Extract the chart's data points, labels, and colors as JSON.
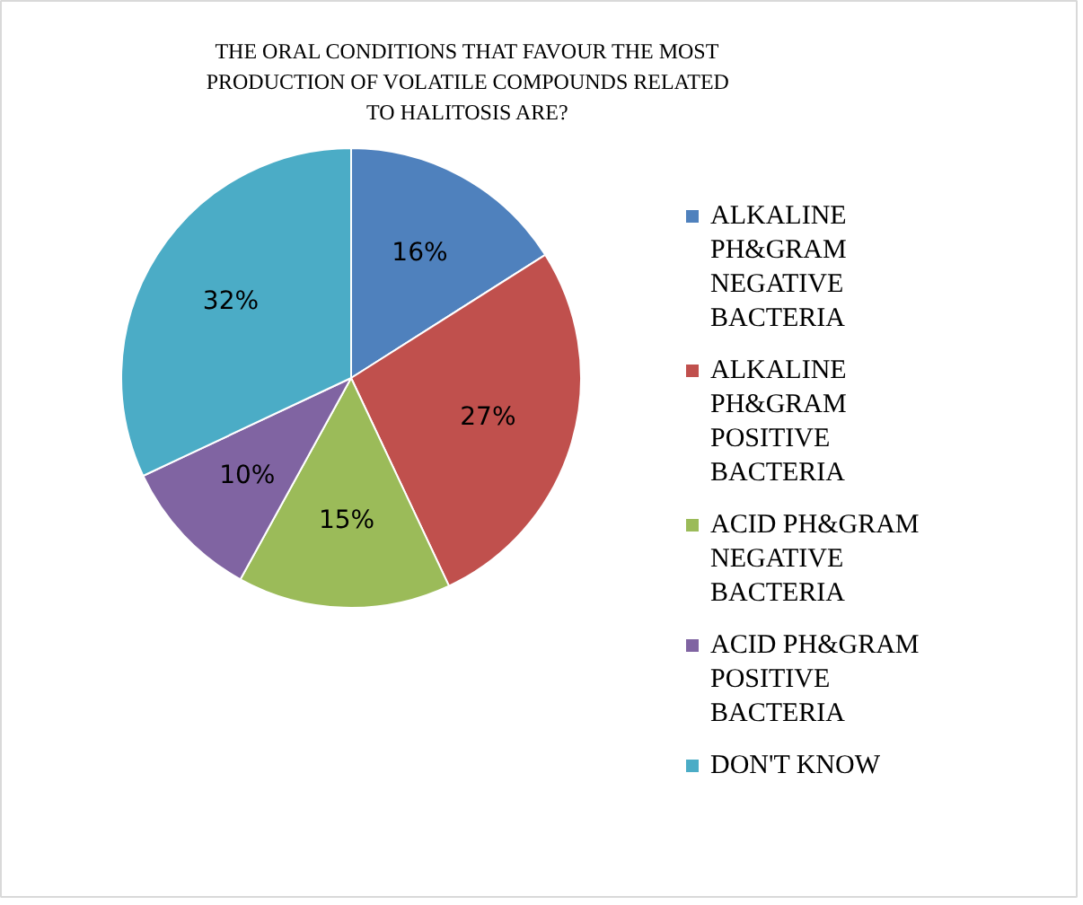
{
  "chart_data": {
    "type": "pie",
    "title": "THE ORAL CONDITIONS THAT FAVOUR THE MOST PRODUCTION OF VOLATILE COMPOUNDS RELATED TO HALITOSIS ARE?",
    "categories": [
      "ALKALINE PH&GRAM NEGATIVE BACTERIA",
      "ALKALINE PH&GRAM POSITIVE BACTERIA",
      "ACID PH&GRAM NEGATIVE BACTERIA",
      "ACID PH&GRAM POSITIVE BACTERIA",
      "DON'T KNOW"
    ],
    "values": [
      16,
      27,
      15,
      10,
      32
    ],
    "colors": [
      "#4f81bd",
      "#c0504d",
      "#9bbb59",
      "#8064a2",
      "#4bacc6"
    ],
    "value_labels": [
      "16%",
      "27%",
      "15%",
      "10%",
      "32%"
    ],
    "legend": "right"
  }
}
